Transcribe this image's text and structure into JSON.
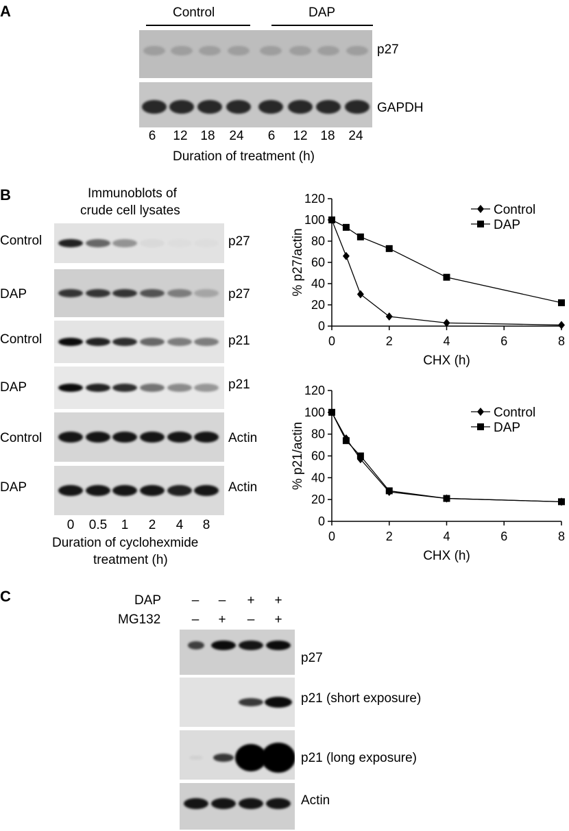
{
  "panelA": {
    "letter": "A",
    "group1": "Control",
    "group2": "DAP",
    "blot1_label": "p27",
    "blot2_label": "GAPDH",
    "lanes": [
      "6",
      "12",
      "18",
      "24",
      "6",
      "12",
      "18",
      "24"
    ],
    "xaxis_title": "Duration of treatment (h)"
  },
  "panelB": {
    "letter": "B",
    "title_line1": "Immunoblots of",
    "title_line2": "crude cell lysates",
    "rows": [
      {
        "left": "Control",
        "right": "p27"
      },
      {
        "left": "DAP",
        "right": "p27"
      },
      {
        "left": "Control",
        "right": "p21"
      },
      {
        "left": "DAP",
        "right": "p21"
      },
      {
        "left": "Control",
        "right": "Actin"
      },
      {
        "left": "DAP",
        "right": "Actin"
      }
    ],
    "lanes": [
      "0",
      "0.5",
      "1",
      "2",
      "4",
      "8"
    ],
    "xaxis_line1": "Duration of cyclohexmide",
    "xaxis_line2": "treatment (h)"
  },
  "panelC": {
    "letter": "C",
    "row1_label": "DAP",
    "row1_signs": [
      "–",
      "–",
      "+",
      "+"
    ],
    "row2_label": "MG132",
    "row2_signs": [
      "–",
      "+",
      "–",
      "+"
    ],
    "blot_labels": [
      "p27",
      "p21 (short exposure)",
      "p21 (long exposure)",
      "Actin"
    ]
  },
  "chart_data": [
    {
      "type": "line",
      "x": [
        0,
        0.5,
        1,
        2,
        4,
        8
      ],
      "xlabel": "CHX (h)",
      "ylabel": "% p27/actin",
      "xlim": [
        0,
        8
      ],
      "ylim": [
        0,
        120
      ],
      "xticks": [
        "0",
        "2",
        "4",
        "6",
        "8"
      ],
      "yticks": [
        "0",
        "20",
        "40",
        "60",
        "80",
        "100",
        "120"
      ],
      "legend": "top-right",
      "grid": false,
      "series": [
        {
          "name": "Control",
          "marker": "diamond",
          "values": [
            100,
            66,
            30,
            9,
            3,
            1
          ]
        },
        {
          "name": "DAP",
          "marker": "square",
          "values": [
            100,
            93,
            84,
            73,
            46,
            22
          ]
        }
      ]
    },
    {
      "type": "line",
      "x": [
        0,
        0.5,
        1,
        2,
        4,
        8
      ],
      "xlabel": "CHX (h)",
      "ylabel": "% p21/actin",
      "xlim": [
        0,
        8
      ],
      "ylim": [
        0,
        120
      ],
      "xticks": [
        "0",
        "2",
        "4",
        "6",
        "8"
      ],
      "yticks": [
        "0",
        "20",
        "40",
        "60",
        "80",
        "100",
        "120"
      ],
      "legend": "top-right",
      "grid": false,
      "series": [
        {
          "name": "Control",
          "marker": "diamond",
          "values": [
            100,
            76,
            57,
            27,
            21,
            18
          ]
        },
        {
          "name": "DAP",
          "marker": "square",
          "values": [
            100,
            74,
            60,
            28,
            21,
            18
          ]
        }
      ]
    }
  ]
}
